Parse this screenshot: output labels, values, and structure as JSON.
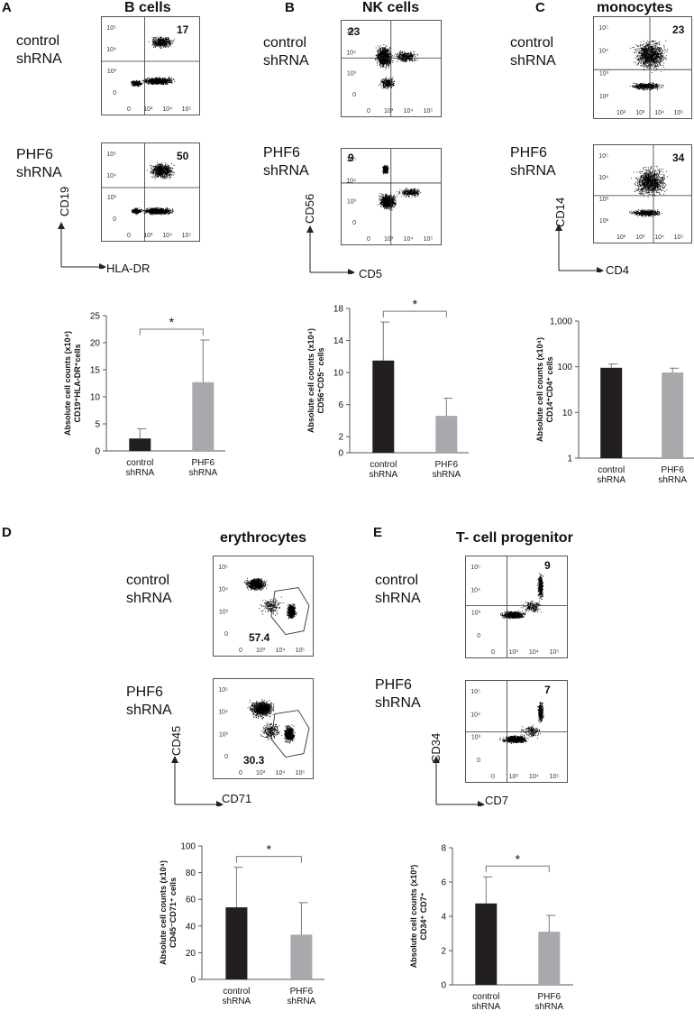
{
  "labels": {
    "control": "control\nshRNA",
    "phf6": "PHF6\nshRNA"
  },
  "panels": {
    "A": {
      "letter": "A",
      "title": "B cells",
      "q_control": "17",
      "q_phf6": "50",
      "xlabel": "HLA-DR",
      "ylabel": "CD19",
      "xticks": [
        "0",
        "10³",
        "10⁴",
        "10⁵"
      ],
      "yticks": [
        "10⁵",
        "10⁴",
        "10³",
        "0"
      ]
    },
    "B": {
      "letter": "B",
      "title": "NK cells",
      "q_control": "23",
      "q_phf6": "9",
      "xlabel": "CD5",
      "ylabel": "CD56",
      "xticks": [
        "0",
        "10³",
        "10⁴",
        "10⁵"
      ],
      "yticks": [
        "10⁵",
        "10⁴",
        "10³",
        "0"
      ]
    },
    "C": {
      "letter": "C",
      "title": "monocytes",
      "q_control": "23",
      "q_phf6": "34",
      "xlabel": "CD4",
      "ylabel": "CD14",
      "xticks": [
        "10²",
        "10³",
        "10⁴",
        "10⁵"
      ],
      "yticks": [
        "10⁵",
        "10⁴",
        "10³",
        "10²"
      ]
    },
    "D": {
      "letter": "D",
      "title": "erythrocytes",
      "q_control": "57.4",
      "q_phf6": "30.3",
      "xlabel": "CD71",
      "ylabel": "CD45",
      "xticks": [
        "0",
        "10³",
        "10⁴",
        "10⁵"
      ],
      "yticks": [
        "10⁵",
        "10⁴",
        "10³",
        "0"
      ]
    },
    "E": {
      "letter": "E",
      "title": "T- cell progenitor",
      "q_control": "9",
      "q_phf6": "7",
      "xlabel": "CD7",
      "ylabel": "CD34",
      "xticks": [
        "0",
        "10³",
        "10⁴",
        "10⁵"
      ],
      "yticks": [
        "10⁵",
        "10⁴",
        "10³",
        "0"
      ]
    }
  },
  "chart_data": [
    {
      "id": "A",
      "type": "bar",
      "categories": [
        "control\nshRNA",
        "PHF6\nshRNA"
      ],
      "values": [
        2.3,
        12.7
      ],
      "errors": [
        1.8,
        7.8
      ],
      "ylabel_lines": [
        "Absolute cell counts (x10⁴)",
        "CD19⁺HLA-DR⁺cells"
      ],
      "ylim": [
        0,
        25
      ],
      "yticks": [
        0,
        5,
        10,
        15,
        20,
        25
      ],
      "significance": "*",
      "colors": [
        "#231f20",
        "#a7a9ac"
      ]
    },
    {
      "id": "B",
      "type": "bar",
      "categories": [
        "control\nshRNA",
        "PHF6\nshRNA"
      ],
      "values": [
        11.5,
        4.6
      ],
      "errors": [
        4.8,
        2.2
      ],
      "ylabel_lines": [
        "Absolute cell counts (x10⁴)",
        "CD56⁺CD5⁻ cells"
      ],
      "ylim": [
        0,
        18
      ],
      "yticks": [
        0,
        2,
        6,
        10,
        14,
        18
      ],
      "significance": "*",
      "colors": [
        "#231f20",
        "#a7a9ac"
      ]
    },
    {
      "id": "C",
      "type": "bar",
      "scale": "log",
      "categories": [
        "control\nshRNA",
        "PHF6\nshRNA"
      ],
      "values": [
        95,
        75
      ],
      "errors": [
        20,
        18
      ],
      "ylabel_lines": [
        "Absolute cell counts (x10⁴)",
        "CD14⁺CD4⁺ cells"
      ],
      "ylim": [
        1,
        1000
      ],
      "yticks": [
        1,
        10,
        100,
        1000
      ],
      "ytick_labels": [
        "1",
        "10",
        "100",
        "1,000"
      ],
      "significance": "",
      "colors": [
        "#231f20",
        "#a7a9ac"
      ]
    },
    {
      "id": "D",
      "type": "bar",
      "categories": [
        "control\nshRNA",
        "PHF6\nshRNA"
      ],
      "values": [
        54,
        33.5
      ],
      "errors": [
        30,
        24
      ],
      "ylabel_lines": [
        "Absolute cell counts (x10⁴)",
        "CD45⁻CD71⁺ cells"
      ],
      "ylim": [
        0,
        100
      ],
      "yticks": [
        0,
        20,
        40,
        60,
        80,
        100
      ],
      "significance": "*",
      "colors": [
        "#231f20",
        "#a7a9ac"
      ]
    },
    {
      "id": "E",
      "type": "bar",
      "categories": [
        "control\nshRNA",
        "PHF6\nshRNA"
      ],
      "values": [
        4.75,
        3.1
      ],
      "errors": [
        1.55,
        0.95
      ],
      "ylabel_lines": [
        "Absolute cell counts (x10³)",
        "CD34⁺ CD7⁺"
      ],
      "ylim": [
        0,
        8
      ],
      "yticks": [
        0,
        2,
        4,
        6,
        8
      ],
      "significance": "*",
      "colors": [
        "#231f20",
        "#a7a9ac"
      ]
    }
  ]
}
